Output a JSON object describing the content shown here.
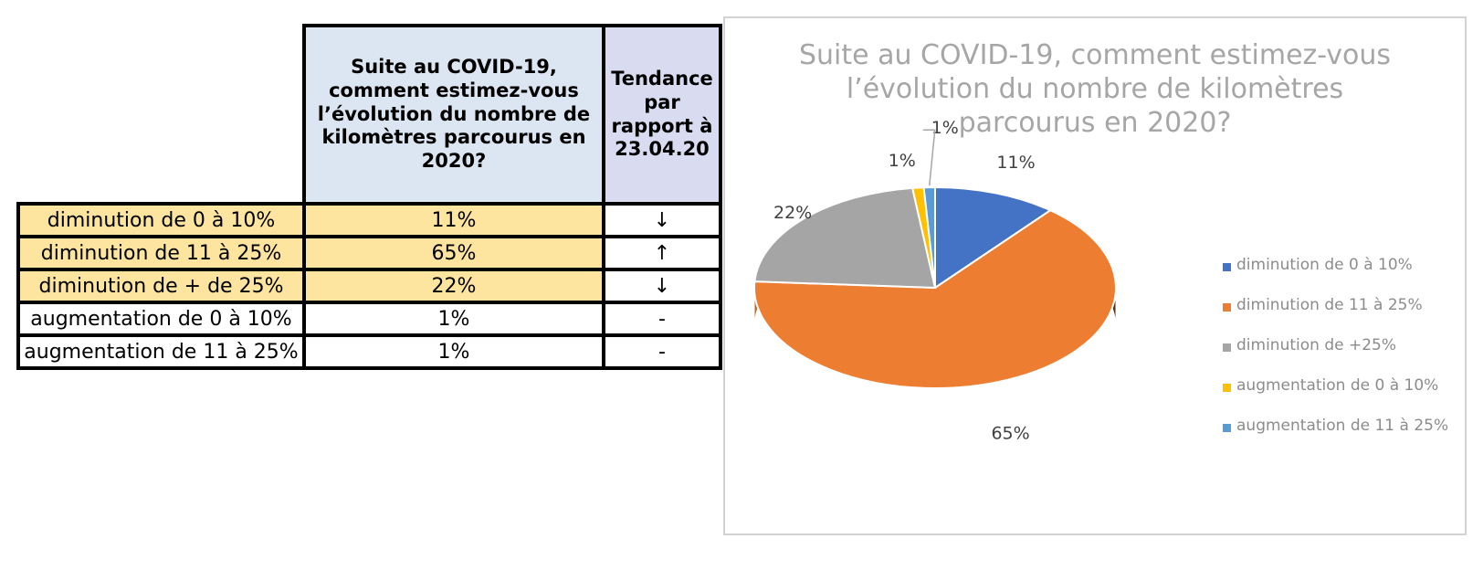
{
  "table": {
    "header_question": "Suite au COVID-19, comment estimez-vous l’évolution du nombre de kilomètres parcourus en 2020?",
    "header_trend": "Tendance par rapport à 23.04.20",
    "rows": [
      {
        "label": "diminution de 0 à 10%",
        "value": "11%",
        "trend": "↓",
        "highlight": true
      },
      {
        "label": "diminution de 11 à 25%",
        "value": "65%",
        "trend": "↑",
        "highlight": true
      },
      {
        "label": "diminution de + de 25%",
        "value": "22%",
        "trend": "↓",
        "highlight": true
      },
      {
        "label": "augmentation de 0 à 10%",
        "value": "1%",
        "trend": "-",
        "highlight": false
      },
      {
        "label": "augmentation de 11 à 25%",
        "value": "1%",
        "trend": "-",
        "highlight": false
      }
    ]
  },
  "chart_data": {
    "type": "pie",
    "title": "Suite au COVID-19, comment estimez-vous l’évolution du nombre de kilomètres parcourus en 2020?",
    "style": "3d",
    "legend_position": "right",
    "slices": [
      {
        "label": "diminution de 0 à 10%",
        "value": 11,
        "data_label": "11%",
        "color": "#4472c4"
      },
      {
        "label": "diminution de 11 à 25%",
        "value": 65,
        "data_label": "65%",
        "color": "#ed7d31"
      },
      {
        "label": "diminution de +25%",
        "value": 22,
        "data_label": "22%",
        "color": "#a5a5a5"
      },
      {
        "label": "augmentation de 0 à 10%",
        "value": 1,
        "data_label": "1%",
        "color": "#ffc000"
      },
      {
        "label": "augmentation de 11 à 25%",
        "value": 1,
        "data_label": "1%",
        "color": "#5b9bd5"
      }
    ]
  }
}
